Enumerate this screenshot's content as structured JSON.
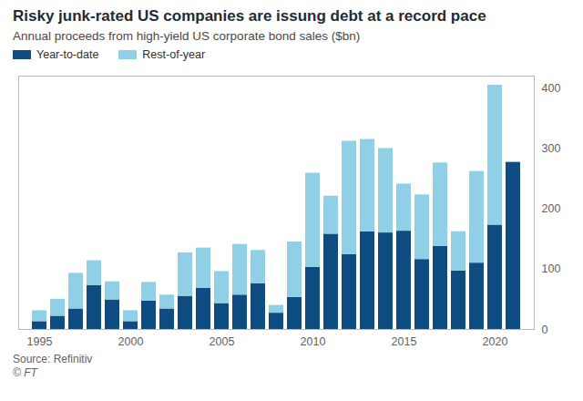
{
  "chart_data": {
    "type": "bar",
    "title": "Risky junk-rated US companies are issung debt at a record pace",
    "subtitle": "Annual proceeds from high-yield US corporate bond sales ($bn)",
    "source": "Source: Refinitiv",
    "copyright": "© FT",
    "stacked": true,
    "legend": "top-left",
    "grid": false,
    "categories": [
      "1995",
      null,
      null,
      null,
      null,
      "2000",
      null,
      null,
      null,
      null,
      "2005",
      null,
      null,
      null,
      null,
      "2010",
      null,
      null,
      null,
      null,
      "2015",
      null,
      null,
      null,
      null,
      "2020",
      null
    ],
    "series": [
      {
        "name": "Year-to-date",
        "color": "#0f4c81",
        "values": [
          13,
          22,
          34,
          73,
          49,
          13,
          47,
          34,
          55,
          68,
          43,
          57,
          76,
          27,
          53,
          103,
          158,
          124,
          162,
          160,
          163,
          116,
          138,
          97,
          110,
          173,
          277
        ]
      },
      {
        "name": "Rest-of-year",
        "color": "#8fd0e6",
        "values": [
          18,
          28,
          59,
          41,
          30,
          18,
          31,
          23,
          72,
          67,
          53,
          84,
          55,
          13,
          92,
          156,
          63,
          188,
          153,
          140,
          78,
          107,
          138,
          65,
          152,
          232,
          null
        ]
      }
    ],
    "ylim": [
      0,
      420
    ],
    "yticks": [
      0,
      100,
      200,
      300,
      400
    ]
  }
}
